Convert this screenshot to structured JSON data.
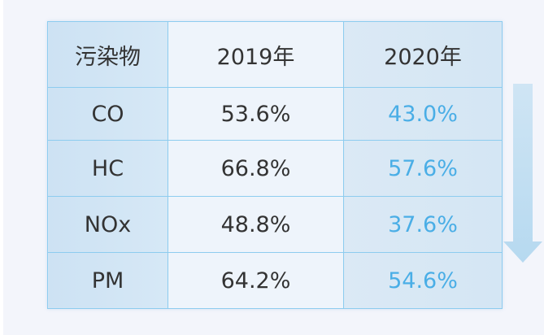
{
  "table": {
    "headers": [
      "污染物",
      "2019年",
      "2020年"
    ],
    "rows": [
      [
        "CO",
        "53.6%",
        "43.0%"
      ],
      [
        "HC",
        "66.8%",
        "57.6%"
      ],
      [
        "NOx",
        "48.8%",
        "37.6%"
      ],
      [
        "PM",
        "64.2%",
        "54.6%"
      ]
    ]
  },
  "colors": {
    "highlight": "#4aaee6",
    "border": "#8dccef",
    "arrow": "#bcdcf0"
  },
  "icons": {
    "arrow": "arrow-down-icon"
  }
}
